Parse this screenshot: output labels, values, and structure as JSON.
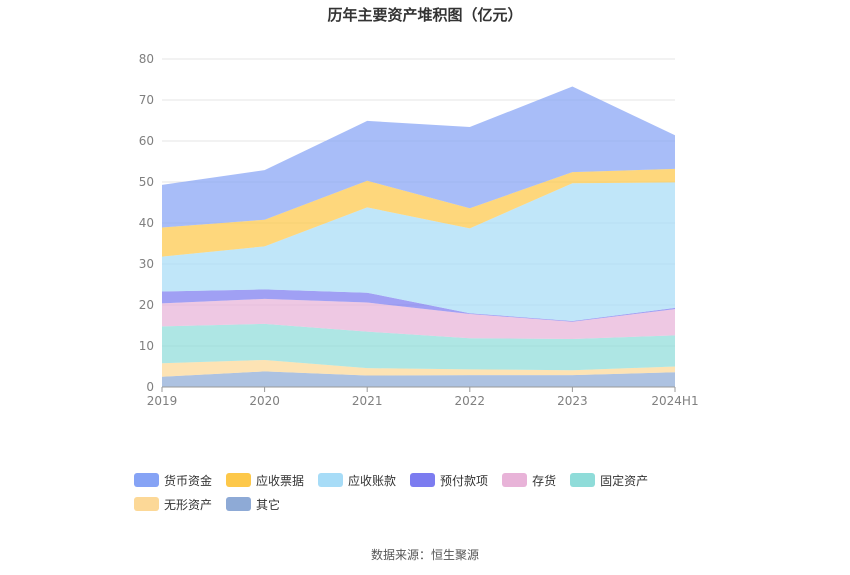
{
  "chart_data": {
    "type": "area",
    "stacked": true,
    "title": "历年主要资产堆积图（亿元）",
    "categories": [
      "2019",
      "2020",
      "2021",
      "2022",
      "2023",
      "2024H1"
    ],
    "ylim": [
      0,
      80
    ],
    "yticks": [
      "0",
      "10",
      "20",
      "30",
      "40",
      "50",
      "60",
      "70",
      "80"
    ],
    "grid": true,
    "legend_position": "bottom",
    "series": [
      {
        "name": "其它",
        "color": "#8eaad6",
        "values": [
          2.5,
          3.8,
          2.8,
          2.9,
          2.9,
          3.6
        ]
      },
      {
        "name": "无形资产",
        "color": "#fcd897",
        "values": [
          3.3,
          2.8,
          1.8,
          1.4,
          1.2,
          1.4
        ]
      },
      {
        "name": "固定资产",
        "color": "#8fdcd9",
        "values": [
          9.0,
          8.8,
          8.9,
          7.6,
          7.6,
          7.6
        ]
      },
      {
        "name": "存货",
        "color": "#e8b3d8",
        "values": [
          5.6,
          6.1,
          7.1,
          5.9,
          4.2,
          6.4
        ]
      },
      {
        "name": "预付款项",
        "color": "#7c7cf0",
        "values": [
          2.9,
          2.3,
          2.4,
          0.2,
          0.2,
          0.3
        ]
      },
      {
        "name": "应收账款",
        "color": "#a7dcf7",
        "values": [
          8.5,
          10.5,
          20.8,
          20.7,
          33.6,
          30.6
        ]
      },
      {
        "name": "应收票据",
        "color": "#fdc84a",
        "values": [
          7.1,
          6.5,
          6.5,
          4.9,
          2.7,
          3.3
        ]
      },
      {
        "name": "货币资金",
        "color": "#86a3f5",
        "values": [
          10.4,
          12.1,
          14.6,
          19.8,
          20.9,
          8.2
        ]
      }
    ]
  },
  "legend": [
    {
      "name": "货币资金",
      "color": "#86a3f5"
    },
    {
      "name": "应收票据",
      "color": "#fdc84a"
    },
    {
      "name": "应收账款",
      "color": "#a7dcf7"
    },
    {
      "name": "预付款项",
      "color": "#7c7cf0"
    },
    {
      "name": "存货",
      "color": "#e8b3d8"
    },
    {
      "name": "固定资产",
      "color": "#8fdcd9"
    },
    {
      "name": "无形资产",
      "color": "#fcd897"
    },
    {
      "name": "其它",
      "color": "#8eaad6"
    }
  ],
  "source": "数据来源：恒生聚源"
}
